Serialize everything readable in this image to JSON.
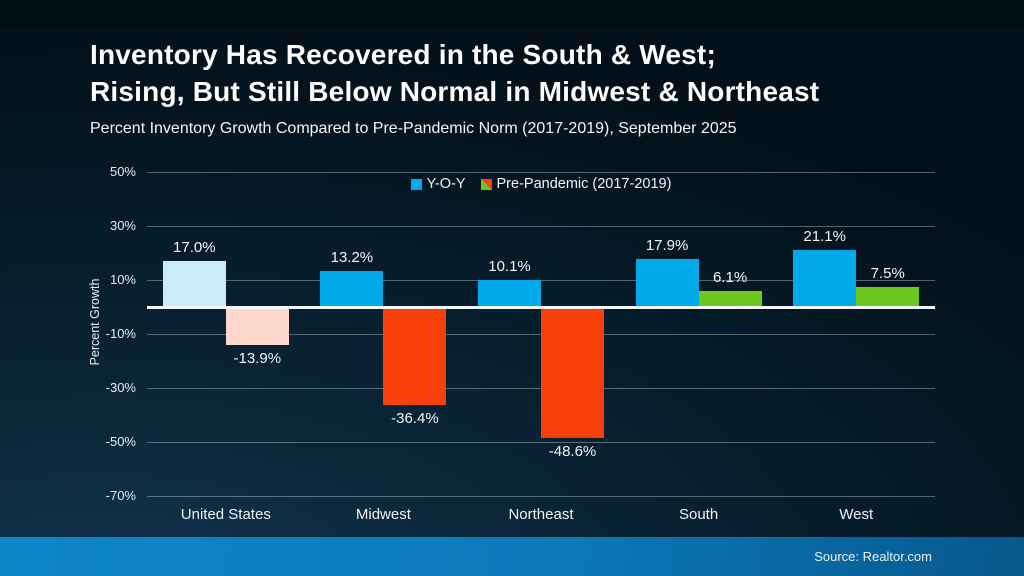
{
  "chart_data": {
    "type": "bar",
    "title": "Inventory Has Recovered in the South & West; Rising, But Still Below Normal in Midwest & Northeast",
    "title_lines": [
      "Inventory Has Recovered in the South & West;",
      "Rising, But Still Below Normal in Midwest & Northeast"
    ],
    "subtitle": "Percent Inventory Growth Compared to Pre-Pandemic Norm (2017-2019), September 2025",
    "xlabel": "",
    "ylabel": "Percent Growth",
    "ylim": [
      -70,
      50
    ],
    "y_ticks": [
      50,
      30,
      10,
      -10,
      -30,
      -50,
      -70
    ],
    "y_tick_suffix": "%",
    "grid": true,
    "legend_position": "top-center",
    "categories": [
      "United States",
      "Midwest",
      "Northeast",
      "South",
      "West"
    ],
    "series": [
      {
        "name": "Y-O-Y",
        "values": [
          17.0,
          13.2,
          10.1,
          17.9,
          21.1
        ],
        "labels": [
          "17.0%",
          "13.2%",
          "10.1%",
          "17.9%",
          "21.1%"
        ],
        "bar_colors": [
          "#c9ebfa",
          "#00a9e9",
          "#00a9e9",
          "#00a9e9",
          "#00a9e9"
        ],
        "legend_swatch": [
          "#00a9e9"
        ]
      },
      {
        "name": "Pre-Pandemic (2017-2019)",
        "values": [
          -13.9,
          -36.4,
          -48.6,
          6.1,
          7.5
        ],
        "labels": [
          "-13.9%",
          "-36.4%",
          "-48.6%",
          "6.1%",
          "7.5%"
        ],
        "bar_colors": [
          "#fcd7cc",
          "#f8400a",
          "#f8400a",
          "#6cc71e",
          "#6cc71e"
        ],
        "legend_swatch": [
          "#6cc71e",
          "#f8400a"
        ]
      }
    ]
  },
  "footer": {
    "source": "Source: Realtor.com"
  },
  "colors": {
    "background_top": "#031019",
    "background_bottom_left": "#123650",
    "gridline": "#5c6d78",
    "zero_line": "#f2f6f8",
    "footer_left": "#0e86c9",
    "footer_right": "#07588c",
    "text": "#ffffff"
  }
}
